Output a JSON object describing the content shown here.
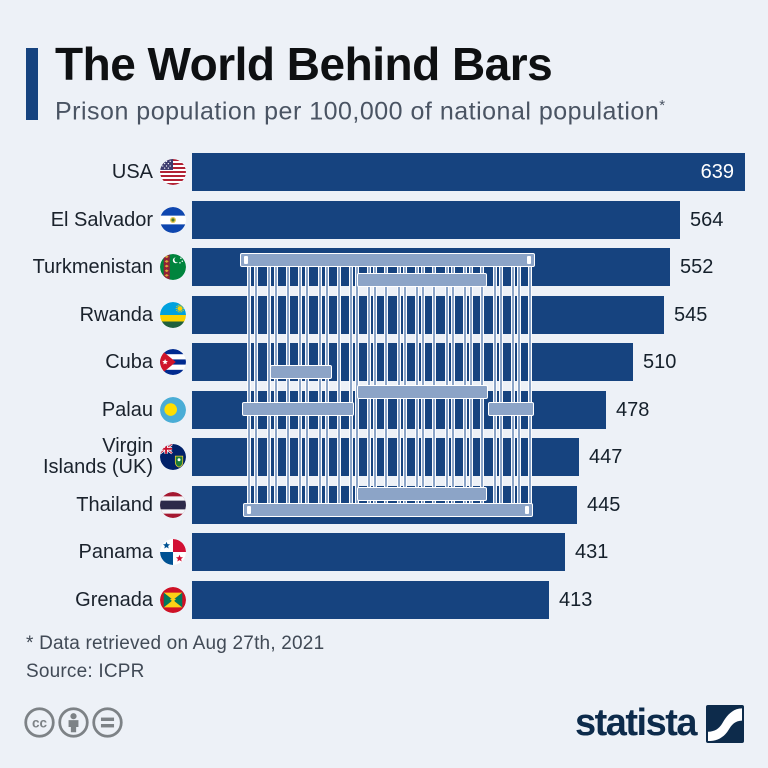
{
  "header": {
    "title": "The World Behind Bars",
    "subtitle": "Prison population per 100,000 of national population",
    "subtitle_asterisk": "*"
  },
  "chart_data": {
    "type": "bar",
    "orientation": "horizontal",
    "title": "The World Behind Bars",
    "categories": [
      "USA",
      "El Salvador",
      "Turkmenistan",
      "Rwanda",
      "Cuba",
      "Palau",
      "Virgin Islands (UK)",
      "Thailand",
      "Panama",
      "Grenada"
    ],
    "values": [
      639,
      564,
      552,
      545,
      510,
      478,
      447,
      445,
      431,
      413
    ],
    "flag_icons": [
      "usa-flag-icon",
      "el-salvador-flag-icon",
      "turkmenistan-flag-icon",
      "rwanda-flag-icon",
      "cuba-flag-icon",
      "palau-flag-icon",
      "virgin-islands-uk-flag-icon",
      "thailand-flag-icon",
      "panama-flag-icon",
      "grenada-flag-icon"
    ],
    "value_label_inside": [
      true,
      false,
      false,
      false,
      false,
      false,
      false,
      false,
      false,
      false
    ],
    "label_lines": [
      [
        "USA"
      ],
      [
        "El Salvador"
      ],
      [
        "Turkmenistan"
      ],
      [
        "Rwanda"
      ],
      [
        "Cuba"
      ],
      [
        "Palau"
      ],
      [
        "Virgin",
        "Islands (UK)"
      ],
      [
        "Thailand"
      ],
      [
        "Panama"
      ],
      [
        "Grenada"
      ]
    ],
    "xlim": [
      0,
      660
    ],
    "bar_color": "#16437f"
  },
  "footer": {
    "footnote": "* Data retrieved on Aug 27th, 2021",
    "source": "Source: ICPR",
    "license_icons": [
      "cc-icon",
      "attribution-person-icon",
      "equals-icon"
    ],
    "logo_text": "statista"
  },
  "colors": {
    "background": "#edf1f7",
    "bar": "#16437f",
    "rod_fill": "#8ca4c7",
    "rod_border": "#ffffff",
    "title": "#0e1012",
    "subtitle": "#4a5463",
    "footer_text": "#414a56",
    "logo_navy": "#0d2b4b",
    "cc_gray": "#7d8286"
  }
}
